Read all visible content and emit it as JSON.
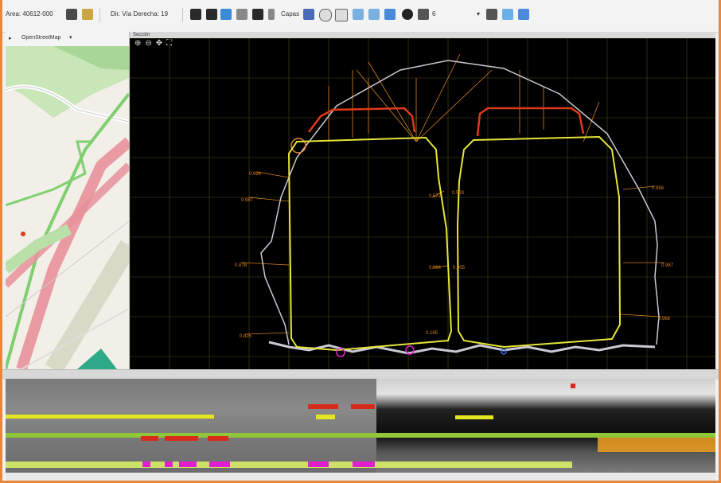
{
  "toolbar": {
    "station_text": "Area: 40612-000",
    "track_text": "Dir. Vía Derecha: 19",
    "layer_text": "Capas",
    "number_text": "6"
  },
  "map_panel": {
    "dropdown_label": "OpenStreetMap"
  },
  "section_panel": {
    "title": "Sección"
  },
  "section_labels": [
    {
      "text": "0.984"
    },
    {
      "text": "0.987"
    },
    {
      "text": "0.878"
    },
    {
      "text": "0.825"
    },
    {
      "text": "0.572"
    },
    {
      "text": "0.984"
    },
    {
      "text": "0.185"
    },
    {
      "text": "0.583"
    },
    {
      "text": "0.905"
    },
    {
      "text": "0.956"
    },
    {
      "text": "0.987"
    },
    {
      "text": "0.968"
    }
  ],
  "colors": {
    "frame_border": "#e8863a",
    "tunnel_outline": "#c9c9d4",
    "clearance_gauge": "#e6e63a",
    "upper_gauge": "#e03a1a",
    "dimension_lines": "#d9821e",
    "grid": "#5a5a1e",
    "map_green": "#7fcf6f",
    "map_road": "#e8909a",
    "strip_yellow": "#e6e61e",
    "strip_green": "#8fc63a",
    "strip_red": "#d82a1a",
    "strip_magenta": "#e020d0",
    "strip_orange": "#f0a020"
  }
}
